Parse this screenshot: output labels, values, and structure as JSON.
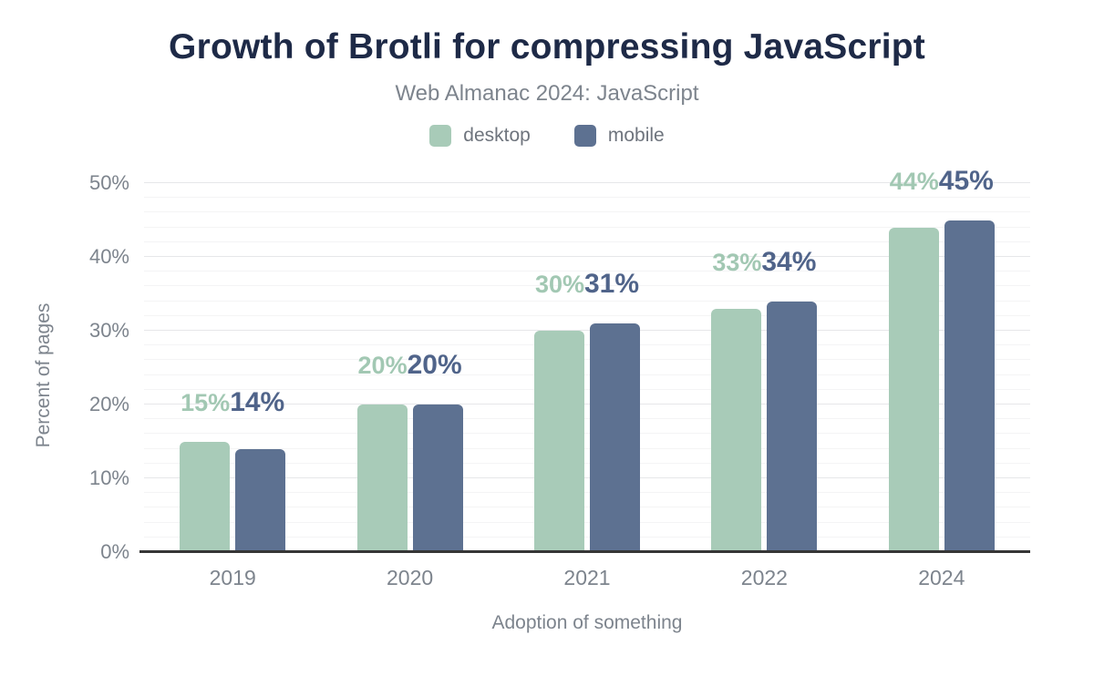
{
  "chart_data": {
    "type": "bar",
    "title": "Growth of Brotli for compressing JavaScript",
    "subtitle": "Web Almanac 2024: JavaScript",
    "xlabel": "Adoption of something",
    "ylabel": "Percent of pages",
    "categories": [
      "2019",
      "2020",
      "2021",
      "2022",
      "2024"
    ],
    "series": [
      {
        "name": "desktop",
        "color": "#a8cbb8",
        "label_color": "#a2c8b3",
        "values": [
          15,
          20,
          30,
          33,
          44
        ],
        "labels": [
          "15%",
          "20%",
          "30%",
          "33%",
          "44%"
        ]
      },
      {
        "name": "mobile",
        "color": "#5d7191",
        "label_color": "#50648a",
        "values": [
          14,
          20,
          31,
          34,
          45
        ],
        "labels": [
          "14%",
          "20%",
          "31%",
          "34%",
          "45%"
        ]
      }
    ],
    "ylim": [
      0,
      50
    ],
    "yticks": [
      {
        "value": 0,
        "label": "0%"
      },
      {
        "value": 10,
        "label": "10%"
      },
      {
        "value": 20,
        "label": "20%"
      },
      {
        "value": 30,
        "label": "30%"
      },
      {
        "value": 40,
        "label": "40%"
      },
      {
        "value": 50,
        "label": "50%"
      }
    ],
    "grid": {
      "minor_step": 2,
      "major_step": 10
    },
    "legend_position": "top",
    "colors": {
      "title": "#1e2a47",
      "axis_text": "#7d848d",
      "axis_line": "#363636",
      "background": "#ffffff"
    }
  }
}
